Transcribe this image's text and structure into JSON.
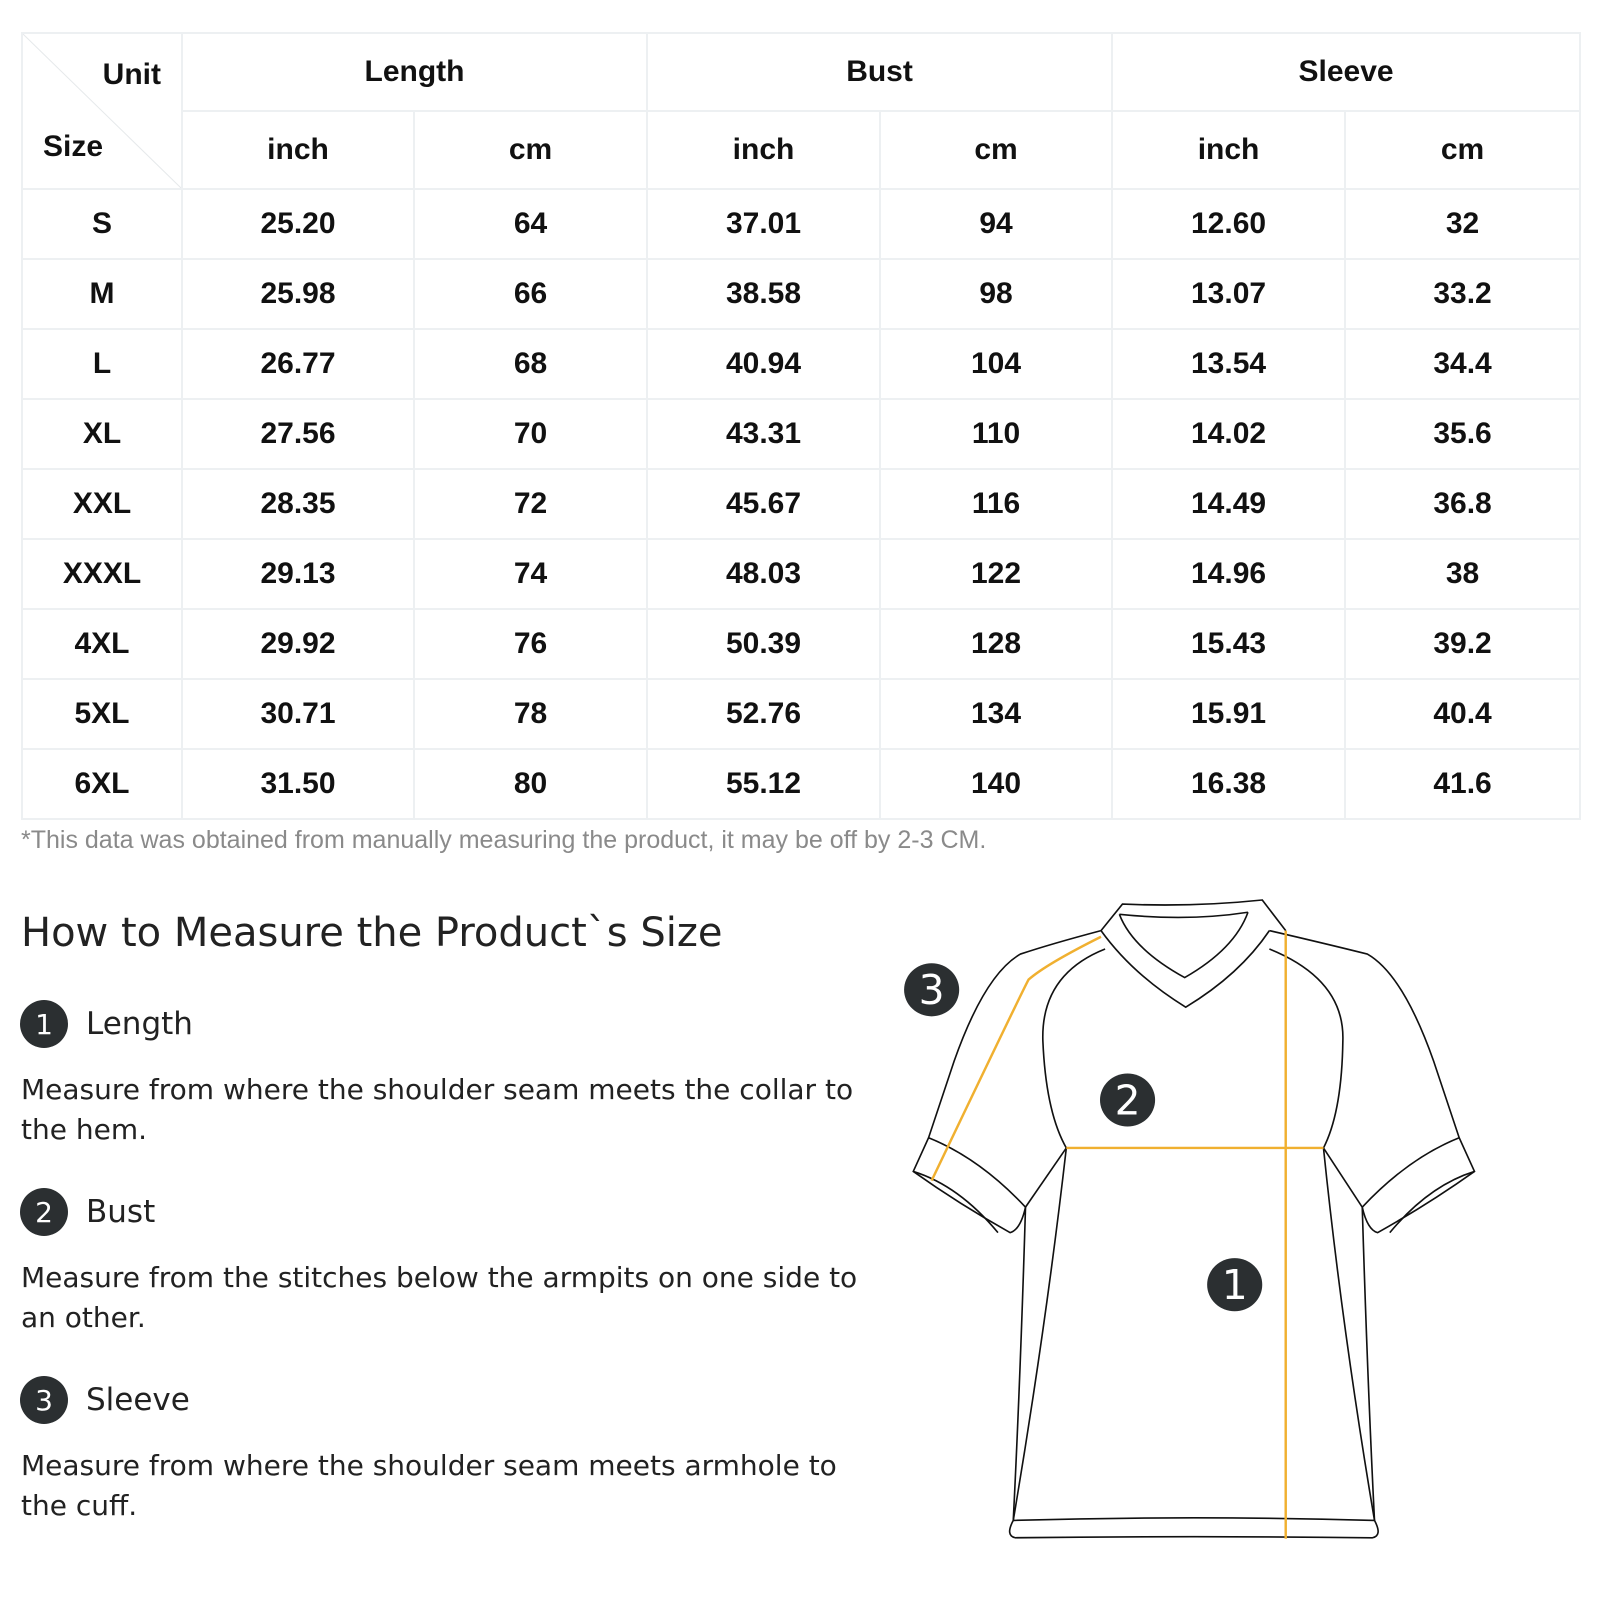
{
  "table": {
    "corner": {
      "unit": "Unit",
      "size": "Size"
    },
    "groups": [
      "Length",
      "Bust",
      "Sleeve"
    ],
    "units": [
      "inch",
      "cm",
      "inch",
      "cm",
      "inch",
      "cm"
    ],
    "rows": [
      [
        "S",
        "25.20",
        "64",
        "37.01",
        "94",
        "12.60",
        "32"
      ],
      [
        "M",
        "25.98",
        "66",
        "38.58",
        "98",
        "13.07",
        "33.2"
      ],
      [
        "L",
        "26.77",
        "68",
        "40.94",
        "104",
        "13.54",
        "34.4"
      ],
      [
        "XL",
        "27.56",
        "70",
        "43.31",
        "110",
        "14.02",
        "35.6"
      ],
      [
        "XXL",
        "28.35",
        "72",
        "45.67",
        "116",
        "14.49",
        "36.8"
      ],
      [
        "XXXL",
        "29.13",
        "74",
        "48.03",
        "122",
        "14.96",
        "38"
      ],
      [
        "4XL",
        "29.92",
        "76",
        "50.39",
        "128",
        "15.43",
        "39.2"
      ],
      [
        "5XL",
        "30.71",
        "78",
        "52.76",
        "134",
        "15.91",
        "40.4"
      ],
      [
        "6XL",
        "31.50",
        "80",
        "55.12",
        "140",
        "16.38",
        "41.6"
      ]
    ]
  },
  "note": "*This data was obtained from manually measuring the product, it may be off by 2-3 CM.",
  "guide": {
    "title": "How to Measure the Product`s Size",
    "items": [
      {
        "num": "1",
        "label": "Length",
        "desc": "Measure from where the shoulder seam meets the collar to the hem."
      },
      {
        "num": "2",
        "label": "Bust",
        "desc": "Measure from the stitches below the armpits on one side to an other."
      },
      {
        "num": "3",
        "label": "Sleeve",
        "desc": "Measure from where the shoulder seam meets armhole to the cuff."
      }
    ]
  },
  "colors": {
    "measure_line": "#f0b030",
    "badge": "#2b2f31",
    "grid": "#edf0f2"
  }
}
